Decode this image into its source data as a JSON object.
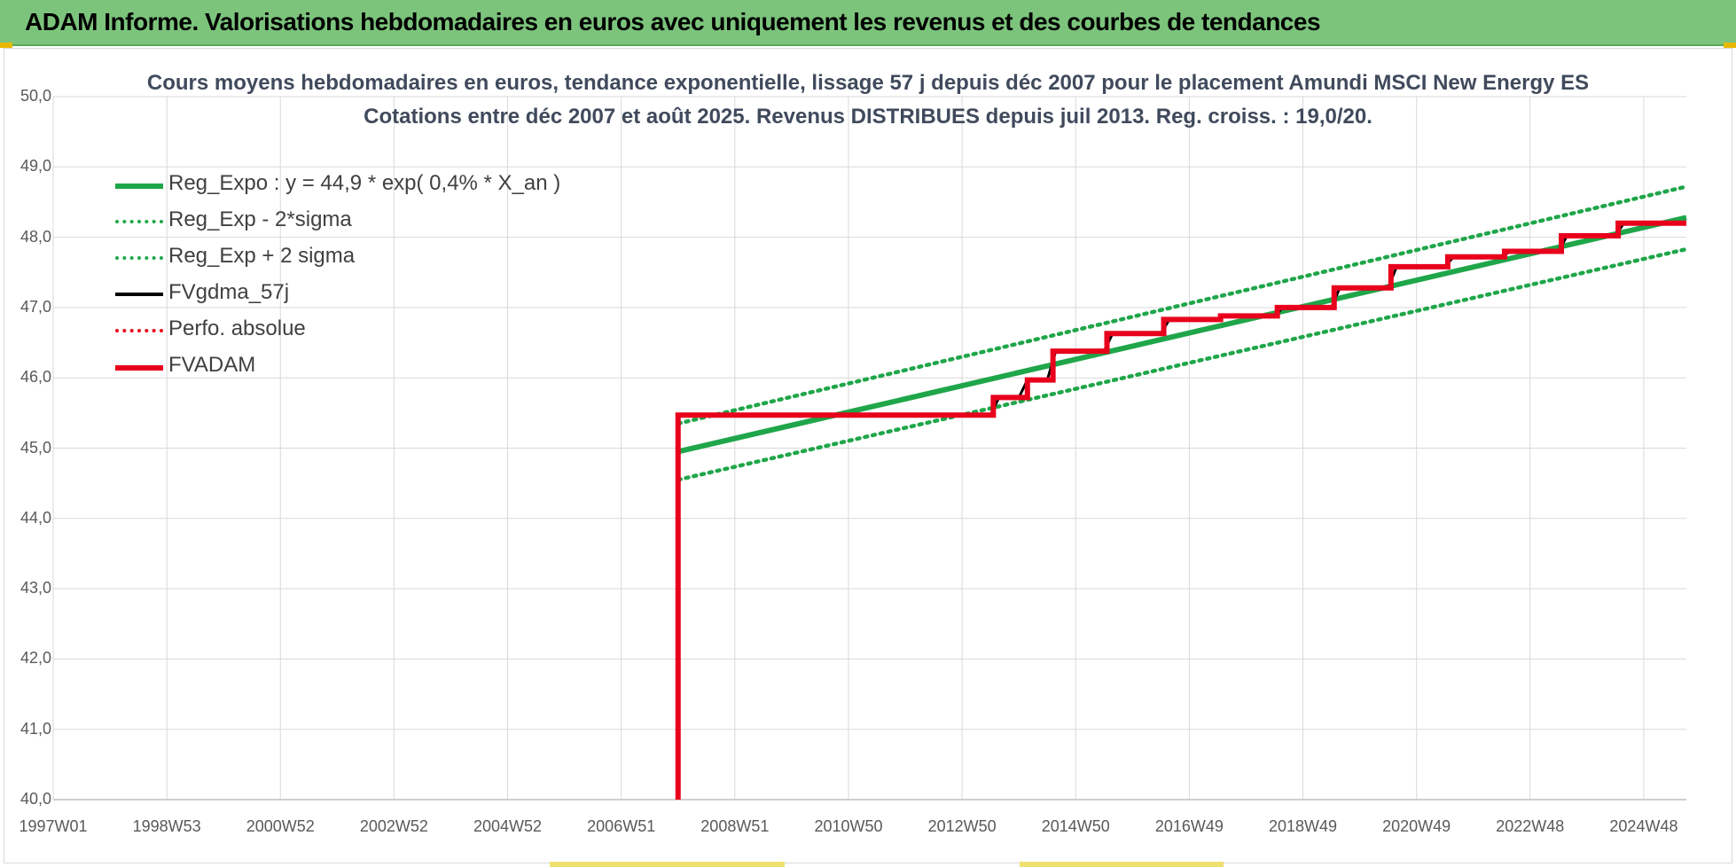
{
  "banner": {
    "title": "ADAM Informe. Valorisations hebdomadaires en euros avec uniquement les revenus et des courbes de tendances"
  },
  "chart_data": {
    "type": "line",
    "title": "Cours moyens hebdomadaires en euros, tendance exponentielle, lissage 57 j depuis déc 2007 pour le placement Amundi MSCI New Energy ES",
    "subtitle": "Cotations entre déc 2007 et août 2025. Revenus DISTRIBUES depuis juil 2013. Reg. croiss. : 19,0/20.",
    "ylim": [
      40.0,
      50.0
    ],
    "y_ticks": [
      "40,0",
      "41,0",
      "42,0",
      "43,0",
      "44,0",
      "45,0",
      "46,0",
      "47,0",
      "48,0",
      "49,0",
      "50,0"
    ],
    "xlim": [
      1997.0,
      2025.75
    ],
    "x_ticks": [
      {
        "label": "1997W01",
        "x": 1997.0
      },
      {
        "label": "1998W53",
        "x": 1999.0
      },
      {
        "label": "2000W52",
        "x": 2001.0
      },
      {
        "label": "2002W52",
        "x": 2003.0
      },
      {
        "label": "2004W52",
        "x": 2005.0
      },
      {
        "label": "2006W51",
        "x": 2007.0
      },
      {
        "label": "2008W51",
        "x": 2009.0
      },
      {
        "label": "2010W50",
        "x": 2011.0
      },
      {
        "label": "2012W50",
        "x": 2013.0
      },
      {
        "label": "2014W50",
        "x": 2015.0
      },
      {
        "label": "2016W49",
        "x": 2017.0
      },
      {
        "label": "2018W49",
        "x": 2019.0
      },
      {
        "label": "2020W49",
        "x": 2021.0
      },
      {
        "label": "2022W48",
        "x": 2023.0
      },
      {
        "label": "2024W48",
        "x": 2025.0
      }
    ],
    "grid": true,
    "legend_position": "top-left",
    "series": [
      {
        "name": "Reg_Expo : y = 44,9 * exp( 0,4% *  X_an )",
        "color": "#1fa64a",
        "style": "solid",
        "x": [
          2008.0,
          2025.75
        ],
        "y": [
          44.95,
          48.28
        ]
      },
      {
        "name": "Reg_Exp - 2*sigma",
        "color": "#1fa64a",
        "style": "dotted",
        "x": [
          2008.0,
          2025.75
        ],
        "y": [
          44.55,
          47.83
        ]
      },
      {
        "name": "Reg_Exp + 2 sigma",
        "color": "#1fa64a",
        "style": "dotted",
        "x": [
          2008.0,
          2025.75
        ],
        "y": [
          45.35,
          48.72
        ]
      },
      {
        "name": "FVgdma_57j",
        "color": "#000000",
        "style": "solid",
        "x": [
          2008.0,
          2013.5,
          2013.65,
          2014.0,
          2014.15,
          2014.5,
          2014.65,
          2015.5,
          2015.65,
          2016.5,
          2016.65,
          2017.5,
          2017.65,
          2018.5,
          2018.65,
          2019.5,
          2019.65,
          2020.5,
          2020.65,
          2021.5,
          2021.65,
          2022.5,
          2022.65,
          2023.5,
          2023.65,
          2024.5,
          2024.65,
          2025.75
        ],
        "y": [
          45.47,
          45.47,
          45.72,
          45.72,
          45.97,
          45.97,
          46.38,
          46.38,
          46.63,
          46.63,
          46.83,
          46.83,
          46.88,
          46.88,
          47.0,
          47.0,
          47.28,
          47.28,
          47.58,
          47.58,
          47.72,
          47.72,
          47.8,
          47.8,
          48.02,
          48.02,
          48.2,
          48.2
        ]
      },
      {
        "name": "Perfo. absolue",
        "color": "#e8001c",
        "style": "dotted",
        "x": [],
        "y": []
      },
      {
        "name": "FVADAM",
        "color": "#e8001c",
        "style": "solid",
        "x": [
          2008.0,
          2008.0,
          2013.55,
          2013.55,
          2014.15,
          2014.15,
          2014.6,
          2014.6,
          2015.55,
          2015.55,
          2016.55,
          2016.55,
          2017.55,
          2017.55,
          2018.55,
          2018.55,
          2019.55,
          2019.55,
          2020.55,
          2020.55,
          2021.55,
          2021.55,
          2022.55,
          2022.55,
          2023.55,
          2023.55,
          2024.55,
          2024.55,
          2025.75
        ],
        "y": [
          40.0,
          45.47,
          45.47,
          45.72,
          45.72,
          45.97,
          45.97,
          46.38,
          46.38,
          46.63,
          46.63,
          46.83,
          46.83,
          46.88,
          46.88,
          47.0,
          47.0,
          47.28,
          47.28,
          47.58,
          47.58,
          47.72,
          47.72,
          47.8,
          47.8,
          48.02,
          48.02,
          48.2,
          48.2
        ]
      }
    ]
  }
}
